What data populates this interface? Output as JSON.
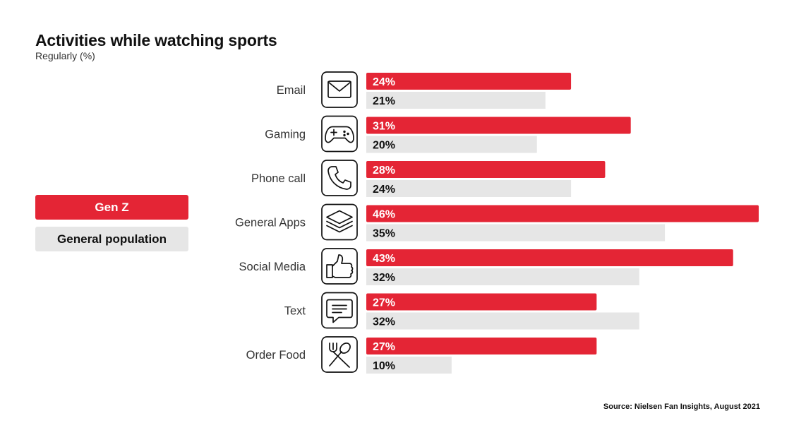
{
  "title": "Activities while watching sports",
  "subtitle": "Regularly (%)",
  "source": "Source: Nielsen Fan Insights, August 2021",
  "colors": {
    "genz": "#e42535",
    "general": "#e6e6e6"
  },
  "chart_data": {
    "type": "bar",
    "orientation": "horizontal",
    "title": "Activities while watching sports",
    "subtitle": "Regularly (%)",
    "legend_position": "left",
    "grid": false,
    "categories": [
      "Email",
      "Gaming",
      "Phone call",
      "General Apps",
      "Social Media",
      "Text",
      "Order Food"
    ],
    "icons": [
      "envelope-icon",
      "gamepad-icon",
      "phone-icon",
      "layers-icon",
      "thumbs-up-icon",
      "chat-icon",
      "fork-spoon-icon"
    ],
    "series": [
      {
        "name": "Gen Z",
        "values": [
          24,
          31,
          28,
          46,
          43,
          27,
          27
        ],
        "labels": [
          "24%",
          "31%",
          "28%",
          "46%",
          "43%",
          "27%",
          "27%"
        ]
      },
      {
        "name": "General population",
        "values": [
          21,
          20,
          24,
          35,
          32,
          32,
          10
        ],
        "labels": [
          "21%",
          "20%",
          "24%",
          "35%",
          "32%",
          "32%",
          "10%"
        ]
      }
    ],
    "xlim": [
      0,
      46
    ]
  }
}
